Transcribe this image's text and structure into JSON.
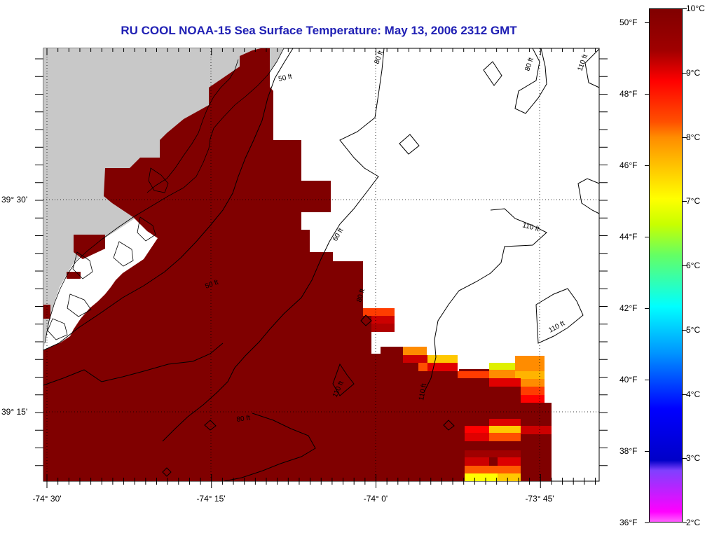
{
  "title": "RU COOL  NOAA-15  Sea Surface Temperature:  May 13, 2006 2312 GMT",
  "axes": {
    "x_labels": [
      "-74° 30'",
      "-74° 15'",
      "-74° 0'",
      "-73° 45'"
    ],
    "y_labels": [
      "39° 30'",
      "39° 15'"
    ]
  },
  "contour_labels": [
    "50 ft",
    "60 ft",
    "80 ft",
    "110 ft"
  ],
  "colorbar": {
    "fahrenheit": [
      "50°F",
      "48°F",
      "46°F",
      "44°F",
      "42°F",
      "40°F",
      "38°F",
      "36°F"
    ],
    "celsius": [
      "10°C",
      "9°C",
      "8°C",
      "7°C",
      "6°C",
      "5°C",
      "4°C",
      "3°C",
      "2°C"
    ],
    "colors": {
      "dark_red": "#800000",
      "red": "#ff0000",
      "orange": "#ff8c00",
      "yellow": "#ffff00",
      "cyan": "#00ffff",
      "blue": "#0000ff",
      "magenta": "#ff00ff",
      "land": "#c8c8c8"
    }
  }
}
